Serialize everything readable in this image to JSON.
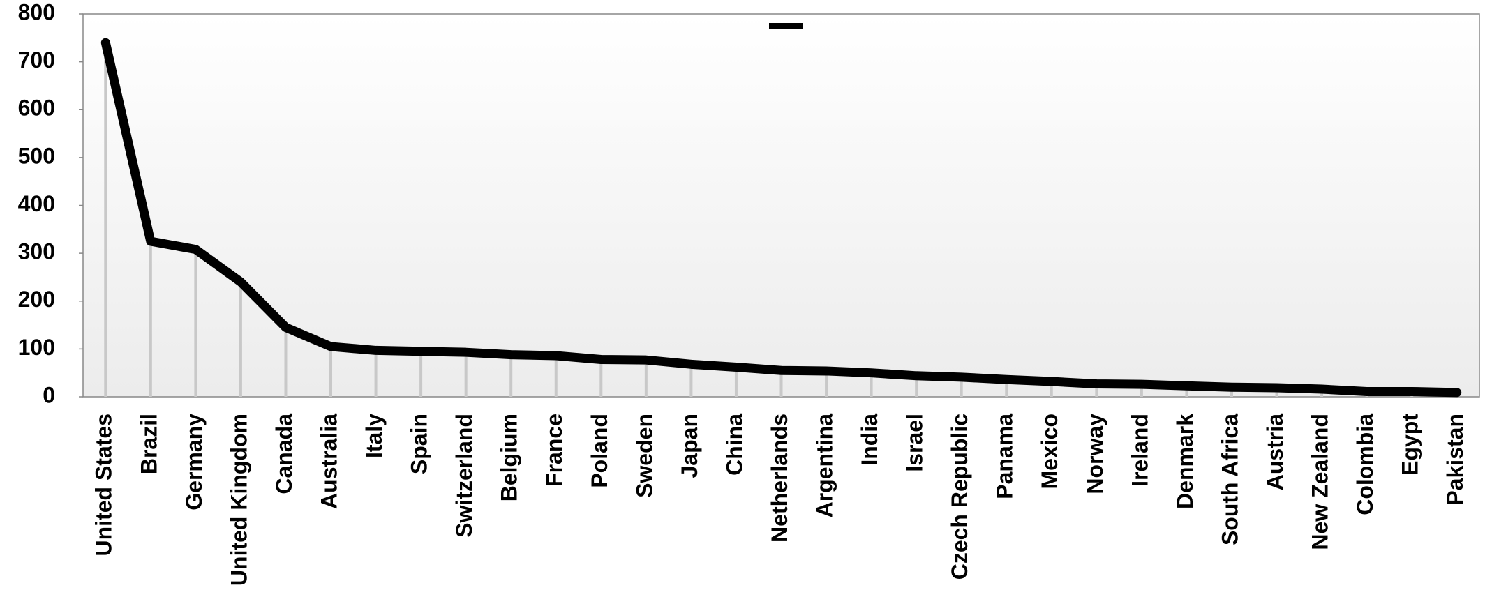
{
  "chart_data": {
    "type": "line",
    "categories": [
      "United States",
      "Brazil",
      "Germany",
      "United Kingdom",
      "Canada",
      "Australia",
      "Italy",
      "Spain",
      "Switzerland",
      "Belgium",
      "France",
      "Poland",
      "Sweden",
      "Japan",
      "China",
      "Netherlands",
      "Argentina",
      "India",
      "Israel",
      "Czech Republic",
      "Panama",
      "Mexico",
      "Norway",
      "Ireland",
      "Denmark",
      "South Africa",
      "Austria",
      "New Zealand",
      "Colombia",
      "Egypt",
      "Pakistan"
    ],
    "series": [
      {
        "color": "#000000",
        "values": [
          740,
          325,
          308,
          240,
          145,
          105,
          97,
          95,
          93,
          88,
          86,
          78,
          77,
          68,
          62,
          55,
          54,
          50,
          44,
          41,
          36,
          32,
          27,
          26,
          23,
          20,
          19,
          16,
          11,
          11,
          9
        ]
      }
    ],
    "ylim": [
      0,
      800
    ],
    "yticks": [
      0,
      100,
      200,
      300,
      400,
      500,
      600,
      700,
      800
    ],
    "drop_lines": true,
    "drop_line_color": "#c8c8c8",
    "grid": false
  }
}
